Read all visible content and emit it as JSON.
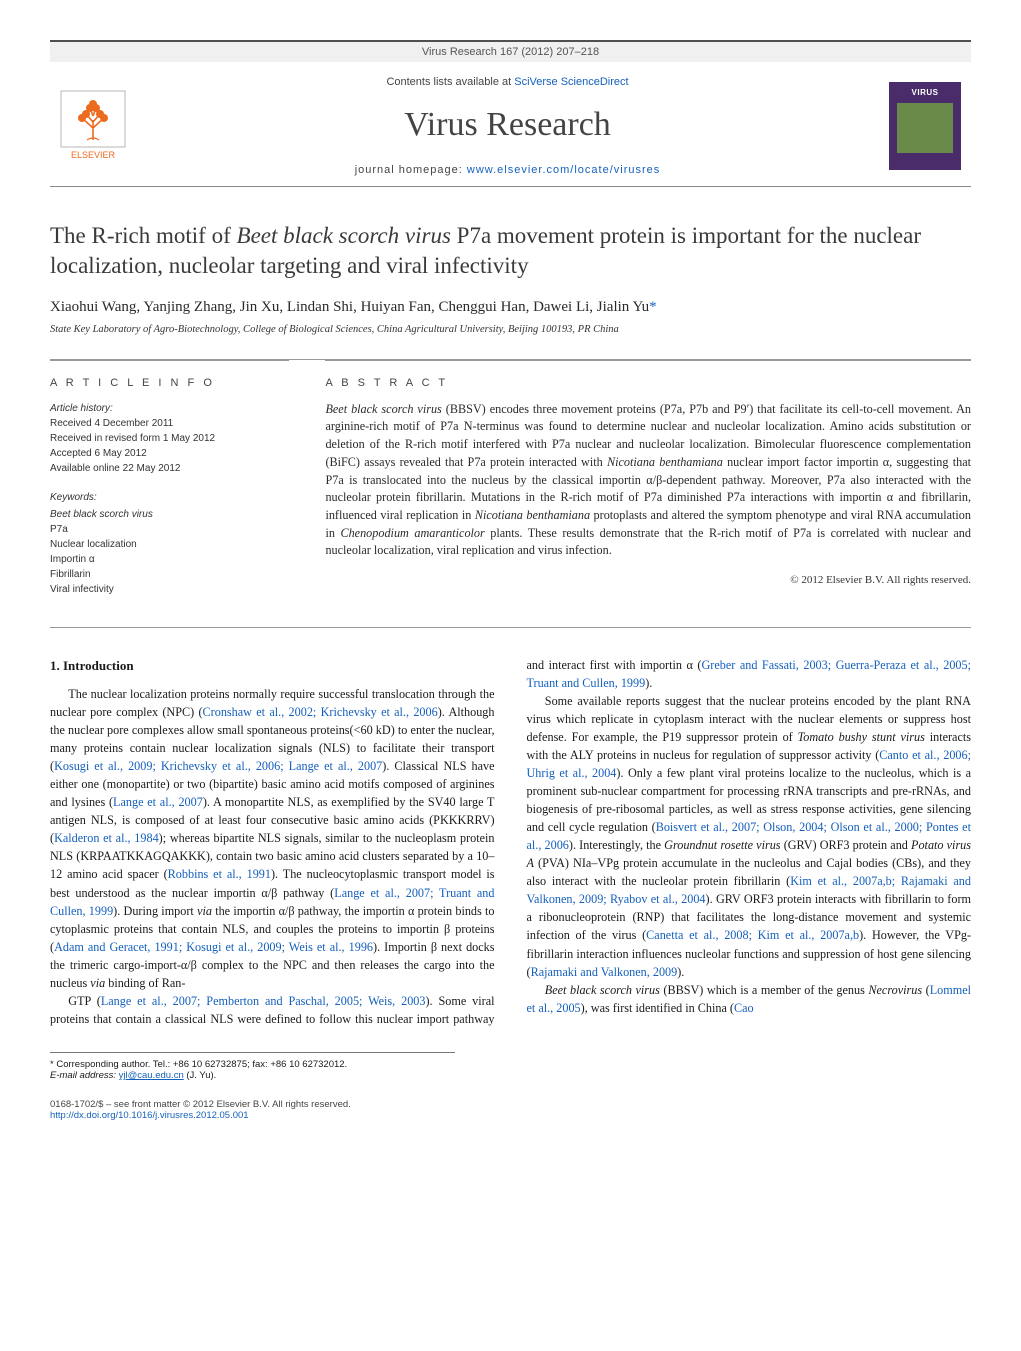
{
  "header_bar": "Virus Research 167 (2012) 207–218",
  "masthead": {
    "contents_prefix": "Contents lists available at ",
    "contents_link": "SciVerse ScienceDirect",
    "journal_title": "Virus Research",
    "homepage_prefix": "journal homepage: ",
    "homepage_link": "www.elsevier.com/locate/virusres",
    "publisher": "ELSEVIER",
    "cover_label": "VIRUS"
  },
  "article": {
    "title_pre": "The R-rich motif of ",
    "title_em": "Beet black scorch virus",
    "title_post": " P7a movement protein is important for the nuclear localization, nucleolar targeting and viral infectivity",
    "authors": "Xiaohui Wang, Yanjing Zhang, Jin Xu, Lindan Shi, Huiyan Fan, Chenggui Han, Dawei Li, Jialin Yu",
    "corr_marker": "*",
    "affiliation": "State Key Laboratory of Agro-Biotechnology, College of Biological Sciences, China Agricultural University, Beijing 100193, PR China"
  },
  "info": {
    "heading": "A R T I C L E   I N F O",
    "history_label": "Article history:",
    "received": "Received 4 December 2011",
    "revised": "Received in revised form 1 May 2012",
    "accepted": "Accepted 6 May 2012",
    "online": "Available online 22 May 2012",
    "keywords_label": "Keywords:",
    "keywords": [
      "Beet black scorch virus",
      "P7a",
      "Nuclear localization",
      "Importin α",
      "Fibrillarin",
      "Viral infectivity"
    ]
  },
  "abstract": {
    "heading": "A B S T R A C T",
    "text_parts": [
      {
        "em": true,
        "t": "Beet black scorch virus"
      },
      {
        "em": false,
        "t": " (BBSV) encodes three movement proteins (P7a, P7b and P9′) that facilitate its cell-to-cell movement. An arginine-rich motif of P7a N-terminus was found to determine nuclear and nucleolar localization. Amino acids substitution or deletion of the R-rich motif interfered with P7a nuclear and nucleolar localization. Bimolecular fluorescence complementation (BiFC) assays revealed that P7a protein interacted with "
      },
      {
        "em": true,
        "t": "Nicotiana benthamiana"
      },
      {
        "em": false,
        "t": " nuclear import factor importin α, suggesting that P7a is translocated into the nucleus by the classical importin α/β-dependent pathway. Moreover, P7a also interacted with the nucleolar protein fibrillarin. Mutations in the R-rich motif of P7a diminished P7a interactions with importin α and fibrillarin, influenced viral replication in "
      },
      {
        "em": true,
        "t": "Nicotiana benthamiana"
      },
      {
        "em": false,
        "t": " protoplasts and altered the symptom phenotype and viral RNA accumulation in "
      },
      {
        "em": true,
        "t": "Chenopodium amaranticolor"
      },
      {
        "em": false,
        "t": " plants. These results demonstrate that the R-rich motif of P7a is correlated with nuclear and nucleolar localization, viral replication and virus infection."
      }
    ],
    "copyright": "© 2012 Elsevier B.V. All rights reserved."
  },
  "body": {
    "section_heading": "1. Introduction",
    "p1": {
      "runs": [
        {
          "t": "The nuclear localization proteins normally require successful translocation through the nuclear pore complex (NPC) ("
        },
        {
          "cite": true,
          "t": "Cronshaw et al., 2002; Krichevsky et al., 2006"
        },
        {
          "t": "). Although the nuclear pore complexes allow small spontaneous proteins(<60 kD) to enter the nuclear, many proteins contain nuclear localization signals (NLS) to facilitate their transport ("
        },
        {
          "cite": true,
          "t": "Kosugi et al., 2009; Krichevsky et al., 2006; Lange et al., 2007"
        },
        {
          "t": "). Classical NLS have either one (monopartite) or two (bipartite) basic amino acid motifs composed of arginines and lysines ("
        },
        {
          "cite": true,
          "t": "Lange et al., 2007"
        },
        {
          "t": "). A monopartite NLS, as exemplified by the SV40 large T antigen NLS, is composed of at least four consecutive basic amino acids (PKKKRRV) ("
        },
        {
          "cite": true,
          "t": "Kalderon et al., 1984"
        },
        {
          "t": "); whereas bipartite NLS signals, similar to the nucleoplasm protein NLS (KRPAATKKAGQAKKK), contain two basic amino acid clusters separated by a 10–12 amino acid spacer ("
        },
        {
          "cite": true,
          "t": "Robbins et al., 1991"
        },
        {
          "t": "). The nucleocytoplasmic transport model is best understood as the nuclear importin α/β pathway ("
        },
        {
          "cite": true,
          "t": "Lange et al., 2007; Truant and Cullen, 1999"
        },
        {
          "t": "). During import "
        },
        {
          "em": true,
          "t": "via"
        },
        {
          "t": " the importin α/β pathway, the importin α protein binds to cytoplasmic proteins that contain NLS, and couples the proteins to importin β proteins ("
        },
        {
          "cite": true,
          "t": "Adam and Geracet, 1991; Kosugi et al., 2009; Weis et al., 1996"
        },
        {
          "t": "). Importin β next docks the trimeric cargo-import-α/β complex to the NPC and then releases the cargo into the nucleus "
        },
        {
          "em": true,
          "t": "via"
        },
        {
          "t": " binding of Ran-"
        }
      ]
    },
    "p2": {
      "runs": [
        {
          "t": "GTP ("
        },
        {
          "cite": true,
          "t": "Lange et al., 2007; Pemberton and Paschal, 2005; Weis, 2003"
        },
        {
          "t": "). Some viral proteins that contain a classical NLS were defined to follow this nuclear import pathway and interact first with importin α ("
        },
        {
          "cite": true,
          "t": "Greber and Fassati, 2003; Guerra-Peraza et al., 2005; Truant and Cullen, 1999"
        },
        {
          "t": ")."
        }
      ]
    },
    "p3": {
      "runs": [
        {
          "t": "Some available reports suggest that the nuclear proteins encoded by the plant RNA virus which replicate in cytoplasm interact with the nuclear elements or suppress host defense. For example, the P19 suppressor protein of "
        },
        {
          "em": true,
          "t": "Tomato bushy stunt virus"
        },
        {
          "t": " interacts with the ALY proteins in nucleus for regulation of suppressor activity ("
        },
        {
          "cite": true,
          "t": "Canto et al., 2006; Uhrig et al., 2004"
        },
        {
          "t": "). Only a few plant viral proteins localize to the nucleolus, which is a prominent sub-nuclear compartment for processing rRNA transcripts and pre-rRNAs, and biogenesis of pre-ribosomal particles, as well as stress response activities, gene silencing and cell cycle regulation ("
        },
        {
          "cite": true,
          "t": "Boisvert et al., 2007; Olson, 2004; Olson et al., 2000; Pontes et al., 2006"
        },
        {
          "t": "). Interestingly, the "
        },
        {
          "em": true,
          "t": "Groundnut rosette virus"
        },
        {
          "t": " (GRV) ORF3 protein and "
        },
        {
          "em": true,
          "t": "Potato virus A"
        },
        {
          "t": " (PVA) NIa–VPg protein accumulate in the nucleolus and Cajal bodies (CBs), and they also interact with the nucleolar protein fibrillarin ("
        },
        {
          "cite": true,
          "t": "Kim et al., 2007a,b; Rajamaki and Valkonen, 2009; Ryabov et al., 2004"
        },
        {
          "t": "). GRV ORF3 protein interacts with fibrillarin to form a ribonucleoprotein (RNP) that facilitates the long-distance movement and systemic infection of the virus ("
        },
        {
          "cite": true,
          "t": "Canetta et al., 2008; Kim et al., 2007a,b"
        },
        {
          "t": "). However, the VPg-fibrillarin interaction influences nucleolar functions and suppression of host gene silencing ("
        },
        {
          "cite": true,
          "t": "Rajamaki and Valkonen, 2009"
        },
        {
          "t": ")."
        }
      ]
    },
    "p4": {
      "runs": [
        {
          "em": true,
          "t": "Beet black scorch virus"
        },
        {
          "t": " (BBSV) which is a member of the genus "
        },
        {
          "em": true,
          "t": "Necrovirus"
        },
        {
          "t": " ("
        },
        {
          "cite": true,
          "t": "Lommel et al., 2005"
        },
        {
          "t": "), was first identified in China ("
        },
        {
          "cite": true,
          "t": "Cao"
        }
      ]
    }
  },
  "footer": {
    "corr_line": "* Corresponding author. Tel.: +86 10 62732875; fax: +86 10 62732012.",
    "email_label": "E-mail address: ",
    "email": "yjl@cau.edu.cn",
    "email_suffix": " (J. Yu).",
    "front_matter": "0168-1702/$ – see front matter © 2012 Elsevier B.V. All rights reserved.",
    "doi": "http://dx.doi.org/10.1016/j.virusres.2012.05.001"
  },
  "colors": {
    "link": "#1560bd",
    "rule": "#999999",
    "text": "#2a2a2a",
    "muted": "#555555",
    "elsevier_orange": "#ed6b1f",
    "cover_purple": "#4a2c6a",
    "cover_green": "#6a8a4a"
  }
}
